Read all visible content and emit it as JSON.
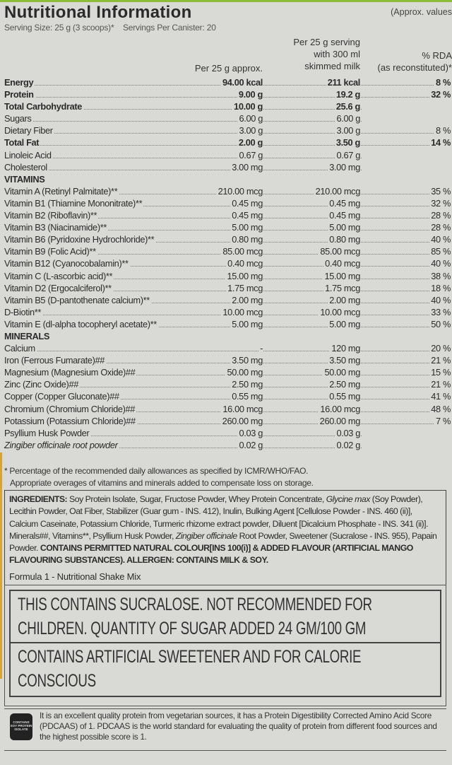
{
  "header": {
    "title": "Nutritional Information",
    "approx_note": "(Approx. values",
    "serving_size": "Serving Size: 25 g (3 scoops)*",
    "servings_per_canister": "Servings Per Canister: 20"
  },
  "columns": {
    "col1": "Per 25 g approx.",
    "col2_line1": "Per 25 g serving",
    "col2_line2": "with 300 ml",
    "col2_line3": "skimmed milk",
    "col3_line1": "% RDA",
    "col3_line2": "(as reconstituted)*"
  },
  "rows": [
    {
      "name": "Energy",
      "c1": "94.00 kcal",
      "c2": "211 kcal",
      "c3": "8 %",
      "bold": true
    },
    {
      "name": "Protein",
      "c1": "9.00 g",
      "c2": "19.2 g",
      "c3": "32 %",
      "bold": true
    },
    {
      "name": "Total Carbohydrate",
      "c1": "10.00 g",
      "c2": "25.6 g",
      "c3": "",
      "bold": true
    },
    {
      "name": "Sugars",
      "c1": "6.00 g",
      "c2": "6.00 g",
      "c3": ""
    },
    {
      "name": "Dietary Fiber",
      "c1": "3.00 g",
      "c2": "3.00 g",
      "c3": "8 %"
    },
    {
      "name": "Total Fat",
      "c1": "2.00 g",
      "c2": "3.50 g",
      "c3": "14 %",
      "bold": true
    },
    {
      "name": "Linoleic Acid",
      "c1": "0.67 g",
      "c2": "0.67 g",
      "c3": ""
    },
    {
      "name": "Cholesterol",
      "c1": "3.00 mg",
      "c2": "3.00 mg",
      "c3": ""
    },
    {
      "name": "VITAMINS",
      "section": true
    },
    {
      "name": "Vitamin A (Retinyl Palmitate)**",
      "c1": "210.00 mcg",
      "c2": "210.00 mcg",
      "c3": "35 %"
    },
    {
      "name": "Vitamin B1 (Thiamine Mononitrate)**",
      "c1": "0.45 mg",
      "c2": "0.45 mg",
      "c3": "32 %"
    },
    {
      "name": "Vitamin B2 (Riboflavin)**",
      "c1": "0.45 mg",
      "c2": "0.45 mg",
      "c3": "28 %"
    },
    {
      "name": "Vitamin B3 (Niacinamide)**",
      "c1": "5.00 mg",
      "c2": "5.00 mg",
      "c3": "28 %"
    },
    {
      "name": "Vitamin B6 (Pyridoxine Hydrochloride)**",
      "c1": "0.80 mg",
      "c2": "0.80 mg",
      "c3": "40 %"
    },
    {
      "name": "Vitamin B9 (Folic Acid)**",
      "c1": "85.00 mcg",
      "c2": "85.00 mcg",
      "c3": "85 %"
    },
    {
      "name": "Vitamin B12 (Cyanocobalamin)**",
      "c1": "0.40 mcg",
      "c2": "0.40 mcg",
      "c3": "40 %"
    },
    {
      "name": "Vitamin C (L-ascorbic acid)**",
      "c1": "15.00 mg",
      "c2": "15.00 mg",
      "c3": "38 %"
    },
    {
      "name": "Vitamin D2 (Ergocalciferol)**",
      "c1": "1.75 mcg",
      "c2": "1.75 mcg",
      "c3": "18 %"
    },
    {
      "name": "Vitamin B5 (D-pantothenate calcium)**",
      "c1": "2.00 mg",
      "c2": "2.00 mg",
      "c3": "40 %"
    },
    {
      "name": "D-Biotin**",
      "c1": "10.00 mcg",
      "c2": "10.00 mcg",
      "c3": "33 %"
    },
    {
      "name": "Vitamin E (dl-alpha tocopheryl acetate)**",
      "c1": "5.00 mg",
      "c2": "5.00 mg",
      "c3": "50 %"
    },
    {
      "name": "MINERALS",
      "section": true
    },
    {
      "name": "Calcium",
      "c1": "-",
      "c2": "120 mg",
      "c3": "20 %"
    },
    {
      "name": "Iron (Ferrous Fumarate)##",
      "c1": "3.50 mg",
      "c2": "3.50 mg",
      "c3": "21 %"
    },
    {
      "name": "Magnesium (Magnesium Oxide)##",
      "c1": "50.00 mg",
      "c2": "50.00 mg",
      "c3": "15 %"
    },
    {
      "name": "Zinc (Zinc Oxide)##",
      "c1": "2.50 mg",
      "c2": "2.50 mg",
      "c3": "21 %"
    },
    {
      "name": "Copper (Copper Gluconate)##",
      "c1": "0.55 mg",
      "c2": "0.55 mg",
      "c3": "41 %"
    },
    {
      "name": "Chromium (Chromium Chloride)##",
      "c1": "16.00 mcg",
      "c2": "16.00 mcg",
      "c3": "48 %"
    },
    {
      "name": "Potassium (Potassium Chloride)##",
      "c1": "260.00 mg",
      "c2": "260.00 mg",
      "c3": "7 %"
    },
    {
      "name": "Psyllium Husk Powder",
      "c1": "0.03 g",
      "c2": "0.03 g",
      "c3": ""
    },
    {
      "name": "Zingiber officinale root powder",
      "c1": "0.02 g",
      "c2": "0.02 g",
      "c3": "",
      "italic_part": true
    }
  ],
  "footnotes": [
    "* Percentage of the recommended daily allowances as specified by ICMR/WHO/FAO.",
    "Appropriate overages of vitamins and minerals added to compensate loss on storage."
  ],
  "ingredients": {
    "label": "INGREDIENTS:",
    "text1": " Soy Protein Isolate, Sugar, Fructose Powder, Whey Protein Concentrate, ",
    "italic1": "Glycine max",
    "text2": " (Soy Powder), Lecithin Powder, Oat Fiber, Stabilizer (Guar gum - INS. 412), Inulin, Bulking Agent [Cellulose Powder - INS. 460 (ii)], Calcium Caseinate, Potassium Chloride, Turmeric rhizome extract powder, Diluent [Dicalcium Phosphate - INS. 341 (ii)]. Minerals##, Vitamins**, Psyllium Husk Powder, ",
    "italic2": "Zingiber officinale",
    "text3": " Root Powder, Sweetener (Sucralose - INS. 955), Papain Powder. ",
    "bold_text": "CONTAINS PERMITTED NATURAL COLOUR[INS 100(i)] & ADDED FLAVOUR (ARTIFICIAL MANGO FLAVOURING SUBSTANCES). ALLERGEN: CONTAINS MILK & SOY."
  },
  "formula": "Formula 1 - Nutritional Shake Mix",
  "warnings": [
    "THIS CONTAINS SUCRALOSE. NOT RECOMMENDED FOR CHILDREN. QUANTITY OF SUGAR ADDED 24 GM/100 GM",
    "CONTAINS ARTIFICIAL SWEETENER AND FOR CALORIE CONSCIOUS"
  ],
  "badge": "CONTAINS SOY PROTEIN ISOLATE",
  "protein_note": "It is an excellent quality protein from vegetarian sources, it has a Protein Digestibility Corrected Amino Acid Score (PDCAAS) of 1. PDCAAS is the world standard for evaluating the quality of protein from different food sources and the highest possible score is 1.",
  "colors": {
    "background": "#d9d9d5",
    "text": "#2b2b2b",
    "brand_green": "#8dbb3a"
  }
}
